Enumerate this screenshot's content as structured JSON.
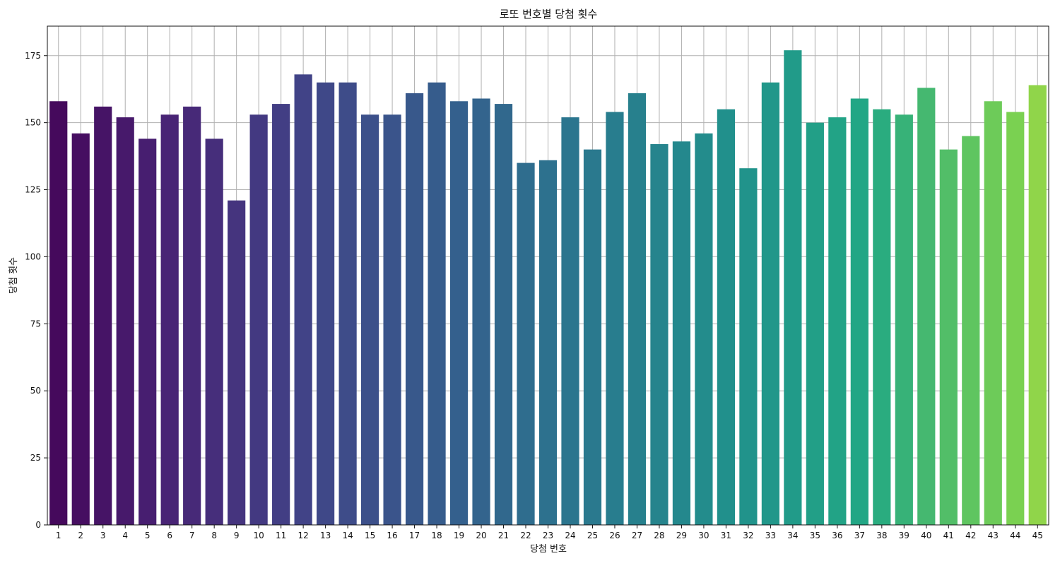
{
  "chart_data": {
    "type": "bar",
    "title": "로또 번호별 당첨 횟수",
    "xlabel": "당첨 번호",
    "ylabel": "당첨 횟수",
    "categories": [
      "1",
      "2",
      "3",
      "4",
      "5",
      "6",
      "7",
      "8",
      "9",
      "10",
      "11",
      "12",
      "13",
      "14",
      "15",
      "16",
      "17",
      "18",
      "19",
      "20",
      "21",
      "22",
      "23",
      "24",
      "25",
      "26",
      "27",
      "28",
      "29",
      "30",
      "31",
      "32",
      "33",
      "34",
      "35",
      "36",
      "37",
      "38",
      "39",
      "40",
      "41",
      "42",
      "43",
      "44",
      "45"
    ],
    "values": [
      158,
      146,
      156,
      152,
      144,
      153,
      156,
      144,
      121,
      153,
      157,
      168,
      165,
      165,
      153,
      153,
      161,
      165,
      158,
      159,
      157,
      135,
      136,
      152,
      140,
      154,
      161,
      142,
      143,
      146,
      155,
      133,
      165,
      177,
      150,
      152,
      159,
      155,
      153,
      163,
      140,
      145,
      158,
      154,
      164
    ],
    "ylim": [
      0,
      186
    ],
    "yticks": [
      0,
      25,
      50,
      75,
      100,
      125,
      150,
      175
    ],
    "grid": true,
    "colormap": "viridis",
    "colors": {
      "start": "#440154",
      "mid": "#21918c",
      "end": "#fde725"
    }
  }
}
